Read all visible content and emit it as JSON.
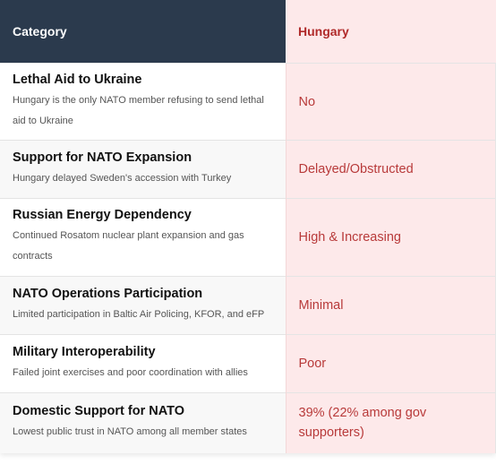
{
  "header": {
    "category": "Category",
    "country": "Hungary"
  },
  "rows": [
    {
      "title": "Lethal Aid to Ukraine",
      "desc": "Hungary is the only NATO member refusing to send lethal aid to Ukraine",
      "value": "No"
    },
    {
      "title": "Support for NATO Expansion",
      "desc": "Hungary delayed Sweden's accession with Turkey",
      "value": "Delayed/Obstructed"
    },
    {
      "title": "Russian Energy Dependency",
      "desc": "Continued Rosatom nuclear plant expansion and gas contracts",
      "value": "High & Increasing"
    },
    {
      "title": "NATO Operations Participation",
      "desc": "Limited participation in Baltic Air Policing, KFOR, and eFP",
      "value": "Minimal"
    },
    {
      "title": "Military Interoperability",
      "desc": "Failed joint exercises and poor coordination with allies",
      "value": "Poor"
    },
    {
      "title": "Domestic Support for NATO",
      "desc": "Lowest public trust in NATO among all member states",
      "value": "39% (22% among gov supporters)"
    }
  ]
}
